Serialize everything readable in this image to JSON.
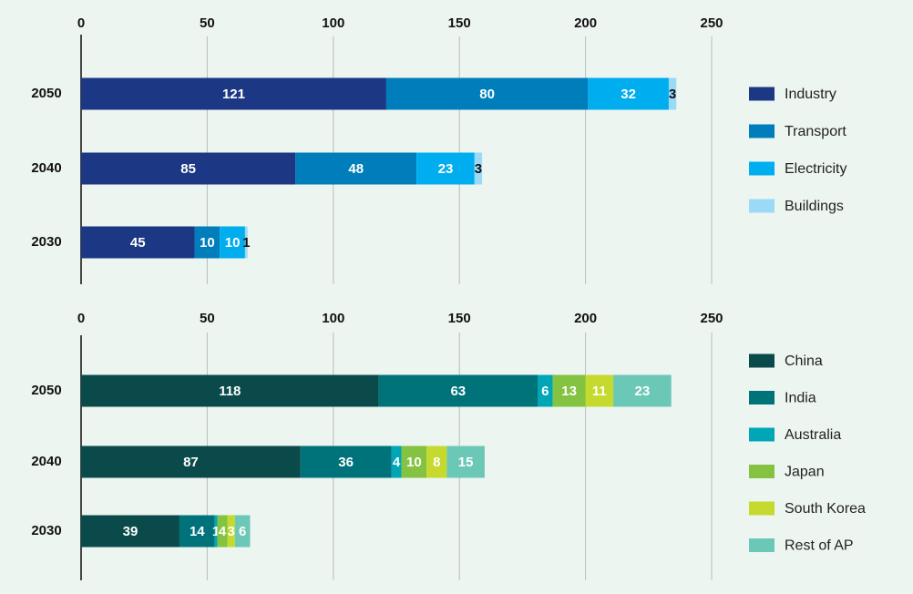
{
  "chart_data": [
    {
      "type": "bar",
      "orientation": "horizontal",
      "stacked": true,
      "categories": [
        "2050",
        "2040",
        "2030"
      ],
      "xlim": [
        0,
        250
      ],
      "ticks": [
        0,
        50,
        100,
        150,
        200,
        250
      ],
      "grid": true,
      "legend_position": "right",
      "series": [
        {
          "name": "Industry",
          "color": "#1c3784",
          "label_color": "#ffffff",
          "values": [
            121,
            85,
            45
          ]
        },
        {
          "name": "Transport",
          "color": "#007ebb",
          "label_color": "#ffffff",
          "values": [
            80,
            48,
            10
          ]
        },
        {
          "name": "Electricity",
          "color": "#00aeef",
          "label_color": "#ffffff",
          "values": [
            32,
            23,
            10
          ]
        },
        {
          "name": "Buildings",
          "color": "#9bdaf7",
          "label_color": "#111111",
          "values": [
            3,
            3,
            1
          ]
        }
      ]
    },
    {
      "type": "bar",
      "orientation": "horizontal",
      "stacked": true,
      "categories": [
        "2050",
        "2040",
        "2030"
      ],
      "xlim": [
        0,
        250
      ],
      "ticks": [
        0,
        50,
        100,
        150,
        200,
        250
      ],
      "grid": true,
      "legend_position": "right",
      "series": [
        {
          "name": "China",
          "color": "#0a4a4a",
          "label_color": "#ffffff",
          "values": [
            118,
            87,
            39
          ]
        },
        {
          "name": "India",
          "color": "#00737a",
          "label_color": "#ffffff",
          "values": [
            63,
            36,
            14
          ]
        },
        {
          "name": "Australia",
          "color": "#00a6b6",
          "label_color": "#ffffff",
          "values": [
            6,
            4,
            1
          ]
        },
        {
          "name": "Japan",
          "color": "#84c341",
          "label_color": "#ffffff",
          "values": [
            13,
            10,
            4
          ]
        },
        {
          "name": "South Korea",
          "color": "#c5d92e",
          "label_color": "#ffffff",
          "values": [
            11,
            8,
            3
          ]
        },
        {
          "name": "Rest of AP",
          "color": "#6bc8b6",
          "label_color": "#ffffff",
          "values": [
            23,
            15,
            6
          ]
        }
      ]
    }
  ]
}
